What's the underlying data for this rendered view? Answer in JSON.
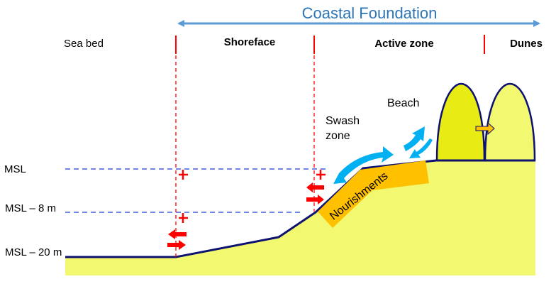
{
  "title": "Coastal Foundation",
  "zones": {
    "sea_bed": "Sea bed",
    "shoreface": "Shoreface",
    "active_zone": "Active zone",
    "dunes": "Dunes"
  },
  "levels": {
    "msl": "MSL",
    "msl_8": "MSL – 8 m",
    "msl_20": "MSL – 20 m"
  },
  "labels": {
    "swash_line1": "Swash",
    "swash_line2": "zone",
    "beach": "Beach",
    "nourishments": "Nourishments"
  },
  "colors": {
    "title": "#2e75b6",
    "arrow": "#5b9bd5",
    "sand": "#f2f870",
    "dune_front": "#e8ec14",
    "nourishment": "#ffc000",
    "profile": "#0d1170",
    "boundary": "#ff0000",
    "water_level": "#1f3fd8",
    "flow": "#00b0f0"
  }
}
